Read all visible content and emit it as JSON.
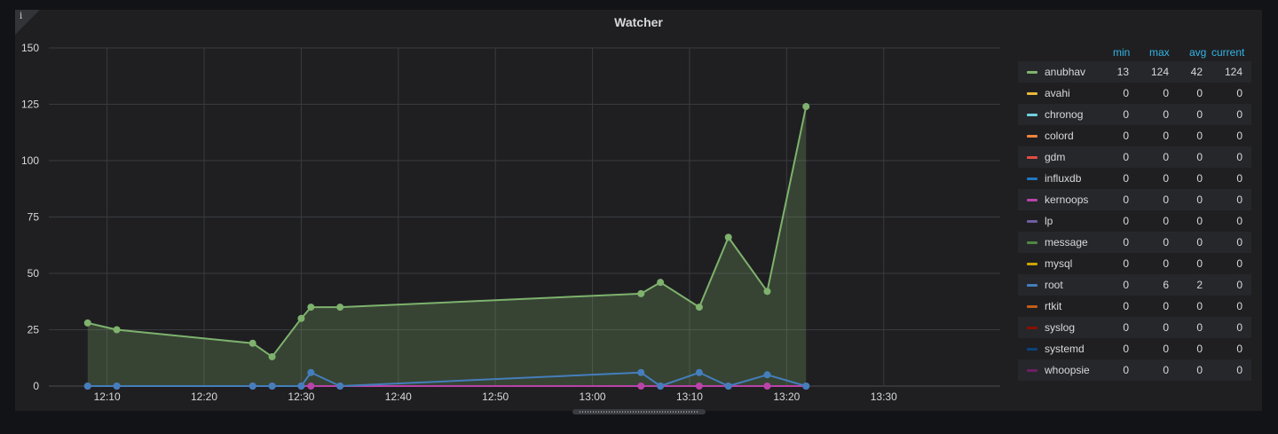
{
  "panel": {
    "title": "Watcher",
    "info_icon": "i"
  },
  "colors": {
    "anubhav": "#7eb26d",
    "avahi": "#eab839",
    "chronog": "#6ed0e0",
    "colord": "#ef843c",
    "gdm": "#e24d42",
    "influxdb": "#1f78c1",
    "kernoops": "#ba43a9",
    "lp": "#705da0",
    "message": "#508642",
    "mysql": "#cca300",
    "root": "#447ebc",
    "rtkit": "#c15c17",
    "syslog": "#890f02",
    "systemd": "#0a437c",
    "whoopsie": "#6d1f62"
  },
  "chart_data": {
    "type": "area",
    "title": "Watcher",
    "ylim": [
      0,
      150
    ],
    "y_ticks": [
      0,
      25,
      50,
      75,
      100,
      125,
      150
    ],
    "xlim": [
      "12:04",
      "13:42"
    ],
    "x_ticks": [
      "12:10",
      "12:20",
      "12:30",
      "12:40",
      "12:50",
      "13:00",
      "13:10",
      "13:20",
      "13:30"
    ],
    "grid": true,
    "legend_placement": "right",
    "x": [
      "12:08",
      "12:11",
      "12:25",
      "12:27",
      "12:30",
      "12:31",
      "12:34",
      "13:05",
      "13:07",
      "13:11",
      "13:14",
      "13:18",
      "13:22"
    ],
    "series": [
      {
        "name": "anubhav",
        "values": [
          28,
          25,
          19,
          13,
          30,
          35,
          35,
          41,
          46,
          35,
          66,
          42,
          124
        ]
      },
      {
        "name": "root",
        "values": [
          0,
          0,
          0,
          0,
          0,
          6,
          0,
          6,
          0,
          6,
          0,
          5,
          0
        ]
      },
      {
        "name": "kernoops",
        "values": [
          0,
          0,
          0,
          0,
          0,
          0,
          0,
          0,
          0,
          0,
          0,
          0,
          0
        ]
      }
    ]
  },
  "legend": {
    "headers": {
      "min": "min",
      "max": "max",
      "avg": "avg",
      "current": "current"
    },
    "rows": [
      {
        "name": "anubhav",
        "min": "13",
        "max": "124",
        "avg": "42",
        "current": "124"
      },
      {
        "name": "avahi",
        "min": "0",
        "max": "0",
        "avg": "0",
        "current": "0"
      },
      {
        "name": "chronog",
        "min": "0",
        "max": "0",
        "avg": "0",
        "current": "0"
      },
      {
        "name": "colord",
        "min": "0",
        "max": "0",
        "avg": "0",
        "current": "0"
      },
      {
        "name": "gdm",
        "min": "0",
        "max": "0",
        "avg": "0",
        "current": "0"
      },
      {
        "name": "influxdb",
        "min": "0",
        "max": "0",
        "avg": "0",
        "current": "0"
      },
      {
        "name": "kernoops",
        "min": "0",
        "max": "0",
        "avg": "0",
        "current": "0"
      },
      {
        "name": "lp",
        "min": "0",
        "max": "0",
        "avg": "0",
        "current": "0"
      },
      {
        "name": "message",
        "min": "0",
        "max": "0",
        "avg": "0",
        "current": "0"
      },
      {
        "name": "mysql",
        "min": "0",
        "max": "0",
        "avg": "0",
        "current": "0"
      },
      {
        "name": "root",
        "min": "0",
        "max": "6",
        "avg": "2",
        "current": "0"
      },
      {
        "name": "rtkit",
        "min": "0",
        "max": "0",
        "avg": "0",
        "current": "0"
      },
      {
        "name": "syslog",
        "min": "0",
        "max": "0",
        "avg": "0",
        "current": "0"
      },
      {
        "name": "systemd",
        "min": "0",
        "max": "0",
        "avg": "0",
        "current": "0"
      },
      {
        "name": "whoopsie",
        "min": "0",
        "max": "0",
        "avg": "0",
        "current": "0"
      }
    ]
  }
}
